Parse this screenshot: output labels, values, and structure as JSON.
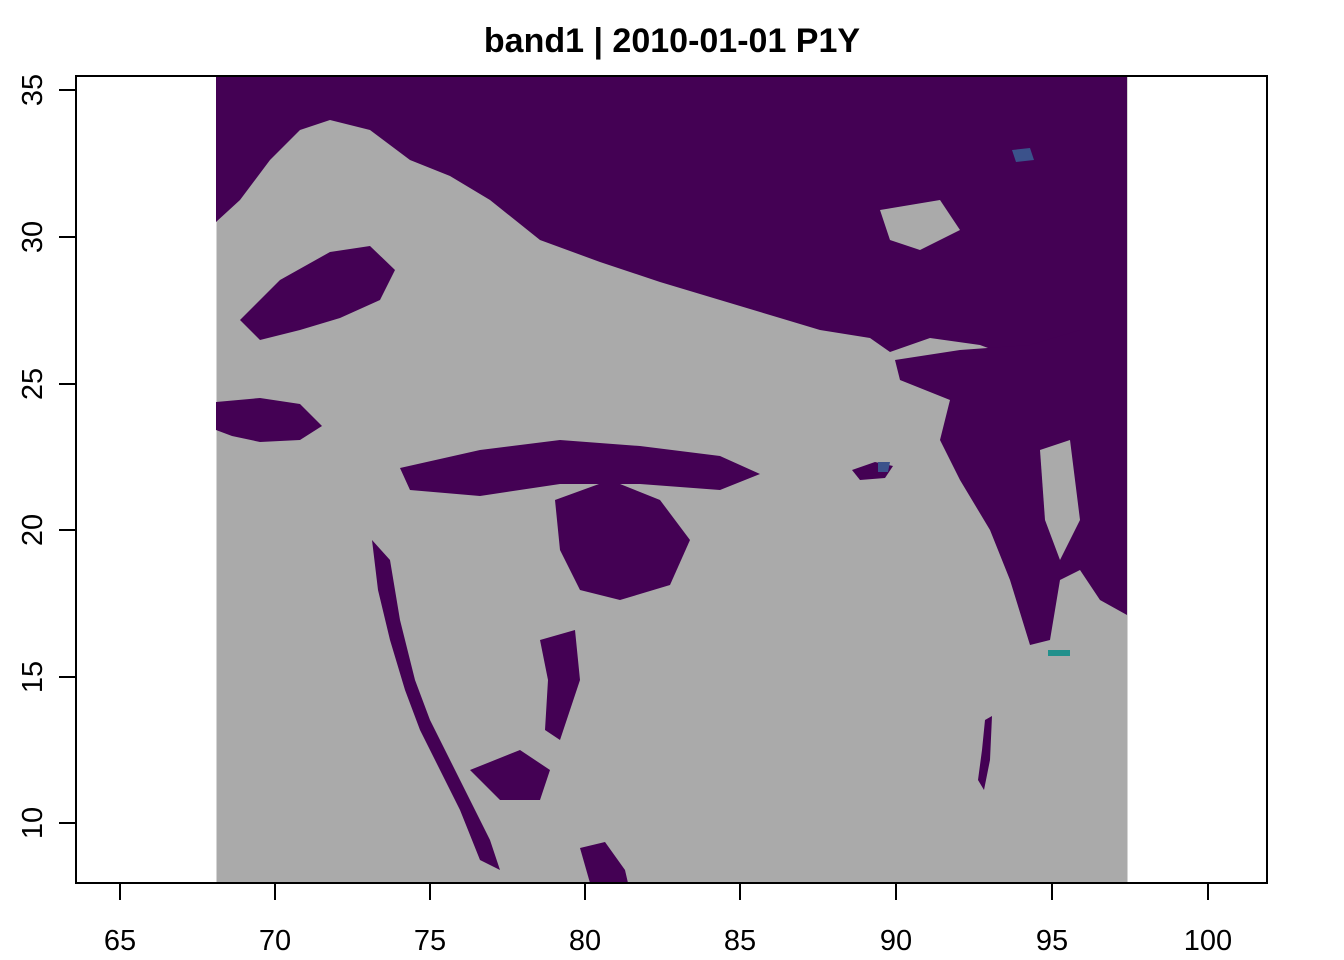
{
  "map": {
    "title": "band1 | 2010-01-01 P1Y",
    "x_axis": {
      "ticks": [
        65,
        70,
        75,
        80,
        85,
        90,
        95,
        100
      ],
      "labels": [
        "65",
        "70",
        "75",
        "80",
        "85",
        "90",
        "95",
        "100"
      ],
      "range": [
        63.9,
        102.0
      ]
    },
    "y_axis": {
      "ticks": [
        10,
        15,
        20,
        25,
        30,
        35
      ],
      "labels": [
        "10",
        "15",
        "20",
        "25",
        "30",
        "35"
      ],
      "range": [
        8.0,
        35.5
      ]
    },
    "raster_extent": {
      "lon": [
        68.2,
        97.5
      ],
      "lat": [
        8.0,
        35.5
      ]
    },
    "colors": {
      "nodata": "#aaaaaa",
      "low_value": "#440154",
      "mid_value": "#3b528b",
      "high_value": "#21908c"
    }
  }
}
